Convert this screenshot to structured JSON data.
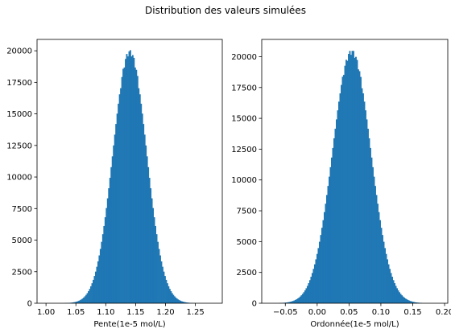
{
  "figure": {
    "suptitle": "Distribution des valeurs simulées",
    "bar_color": "#1f77b4"
  },
  "chart_data": [
    {
      "type": "bar",
      "subtype": "histogram",
      "xlabel": "Pente(1e-5 mol/L)",
      "ylabel": "",
      "xlim": [
        0.985,
        1.295
      ],
      "ylim": [
        0,
        20900
      ],
      "xticks": [
        1.0,
        1.05,
        1.1,
        1.15,
        1.2,
        1.25
      ],
      "xtick_labels": [
        "1.00",
        "1.05",
        "1.10",
        "1.15",
        "1.20",
        "1.25"
      ],
      "yticks": [
        0,
        2500,
        5000,
        7500,
        10000,
        12500,
        15000,
        17500,
        20000
      ],
      "ytick_labels": [
        "0",
        "2500",
        "5000",
        "7500",
        "10000",
        "12500",
        "15000",
        "17500",
        "20000"
      ],
      "distribution": {
        "shape": "approximately normal",
        "center": 1.14,
        "std": 0.028,
        "peak_count": 19900,
        "support": [
          1.03,
          1.27
        ]
      },
      "bins": {
        "start": 1.03,
        "width": 0.002,
        "count": 120
      },
      "grid": false
    },
    {
      "type": "bar",
      "subtype": "histogram",
      "xlabel": "Ordonnée(1e-5 mol/L)",
      "ylabel": "",
      "xlim": [
        -0.087,
        0.205
      ],
      "ylim": [
        0,
        21400
      ],
      "xticks": [
        -0.05,
        0.0,
        0.05,
        0.1,
        0.15,
        0.2
      ],
      "xtick_labels": [
        "−0.05",
        "0.00",
        "0.05",
        "0.10",
        "0.15",
        "0.20"
      ],
      "yticks": [
        0,
        2500,
        5000,
        7500,
        10000,
        12500,
        15000,
        17500,
        20000
      ],
      "ytick_labels": [
        "0",
        "2500",
        "5000",
        "7500",
        "10000",
        "12500",
        "15000",
        "17500",
        "20000"
      ],
      "distribution": {
        "shape": "approximately normal",
        "center": 0.054,
        "std": 0.03,
        "peak_count": 20400,
        "support": [
          -0.06,
          0.165
        ]
      },
      "bins": {
        "start": -0.06,
        "width": 0.0019,
        "count": 118
      },
      "grid": false
    }
  ]
}
